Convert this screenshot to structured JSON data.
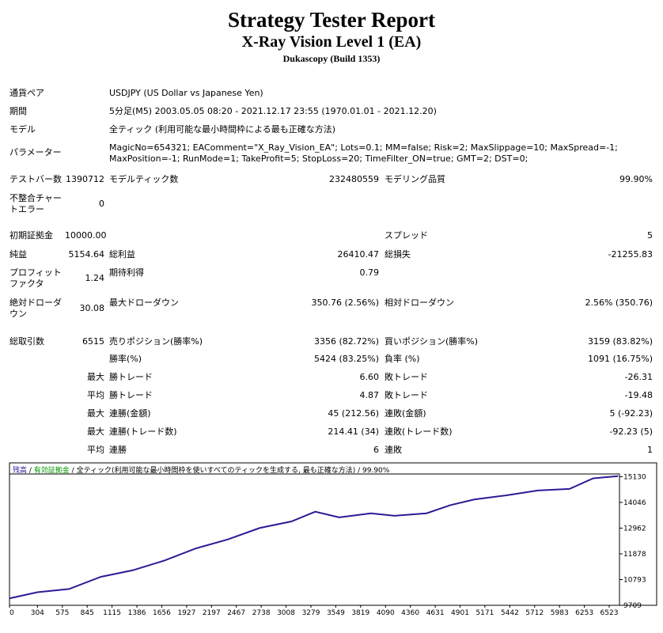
{
  "header": {
    "title": "Strategy Tester Report",
    "subtitle": "X-Ray Vision Level 1 (EA)",
    "build": "Dukascopy (Build 1353)"
  },
  "info": [
    [
      "通貨ペア",
      "USDJPY (US Dollar vs Japanese Yen)"
    ],
    [
      "期間",
      "5分足(M5) 2003.05.05 08:20 - 2021.12.17 23:55 (1970.01.01 - 2021.12.20)"
    ],
    [
      "モデル",
      "全ティック (利用可能な最小時間枠による最も正確な方法)"
    ],
    [
      "パラメーター",
      "MagicNo=654321; EAComment=\"X_Ray_Vision_EA\"; Lots=0.1; MM=false; Risk=2; MaxSlippage=10; MaxSpread=-1; MaxPosition=-1; RunMode=1; TakeProfit=5; StopLoss=20; TimeFilter_ON=true; GMT=2; DST=0;"
    ]
  ],
  "stats": [
    [
      "テストバー数",
      "1390712",
      "モデルティック数",
      "232480559",
      "モデリング品質",
      "99.90%"
    ],
    [
      "不整合チャートエラー",
      "0",
      null,
      null,
      null,
      null
    ],
    [
      "初期証拠金",
      "10000.00",
      null,
      null,
      "スプレッド",
      "5"
    ],
    [
      "純益",
      "5154.64",
      "総利益",
      "26410.47",
      "総損失",
      "-21255.83"
    ],
    [
      "プロフィットファクタ",
      "1.24",
      "期待利得",
      "0.79",
      null,
      null
    ],
    [
      "絶対ドローダウン",
      "30.08",
      "最大ドローダウン",
      "350.76 (2.56%)",
      "相対ドローダウン",
      "2.56% (350.76)"
    ],
    [
      "総取引数",
      "6515",
      "売りポジション(勝率%)",
      "3356 (82.72%)",
      "買いポジション(勝率%)",
      "3159 (83.82%)"
    ],
    [
      null,
      null,
      "勝率(%)",
      "5424 (83.25%)",
      "負率 (%)",
      "1091 (16.75%)"
    ],
    [
      null,
      "最大",
      "勝トレード",
      "6.60",
      "敗トレード",
      "-26.31"
    ],
    [
      null,
      "平均",
      "勝トレード",
      "4.87",
      "敗トレード",
      "-19.48"
    ],
    [
      null,
      "最大",
      "連勝(金額)",
      "45 (212.56)",
      "連敗(金額)",
      "5 (-92.23)"
    ],
    [
      null,
      "最大",
      "連勝(トレード数)",
      "214.41 (34)",
      "連敗(トレード数)",
      "-92.23 (5)"
    ],
    [
      null,
      "平均",
      "連勝",
      "6",
      "連敗",
      "1"
    ]
  ],
  "chart_data": {
    "type": "line",
    "equity_label": "有効証拠金",
    "equity_color": "#009900",
    "model_label": "全ティック(利用可能な最小時間枠を使いすべてのティックを生成する, 最も正確な方法)",
    "quality": "99.90%",
    "x": [
      0,
      302,
      648,
      994,
      1339,
      1685,
      2030,
      2376,
      2722,
      3067,
      3326,
      3586,
      3931,
      4190,
      4536,
      4795,
      5054,
      5400,
      5746,
      6091,
      6350,
      6620
    ],
    "series": [
      {
        "name": "残高",
        "color": "#2e1a96",
        "values": [
          10000,
          10258,
          10395,
          10910,
          11184,
          11596,
          12110,
          12488,
          12968,
          13243,
          13655,
          13415,
          13586,
          13483,
          13586,
          13929,
          14169,
          14341,
          14547,
          14615,
          15061,
          15155
        ]
      }
    ],
    "xlim": [
      0,
      6635
    ],
    "ylim": [
      9709,
      15645
    ],
    "xticks": [
      0,
      304,
      575,
      845,
      1115,
      1386,
      1656,
      1927,
      2197,
      2467,
      2738,
      3008,
      3279,
      3549,
      3819,
      4090,
      4360,
      4631,
      4901,
      5171,
      5442,
      5712,
      5983,
      6253,
      6523
    ],
    "yticks": [
      9709,
      10793,
      11878,
      12962,
      14046,
      15130
    ]
  }
}
